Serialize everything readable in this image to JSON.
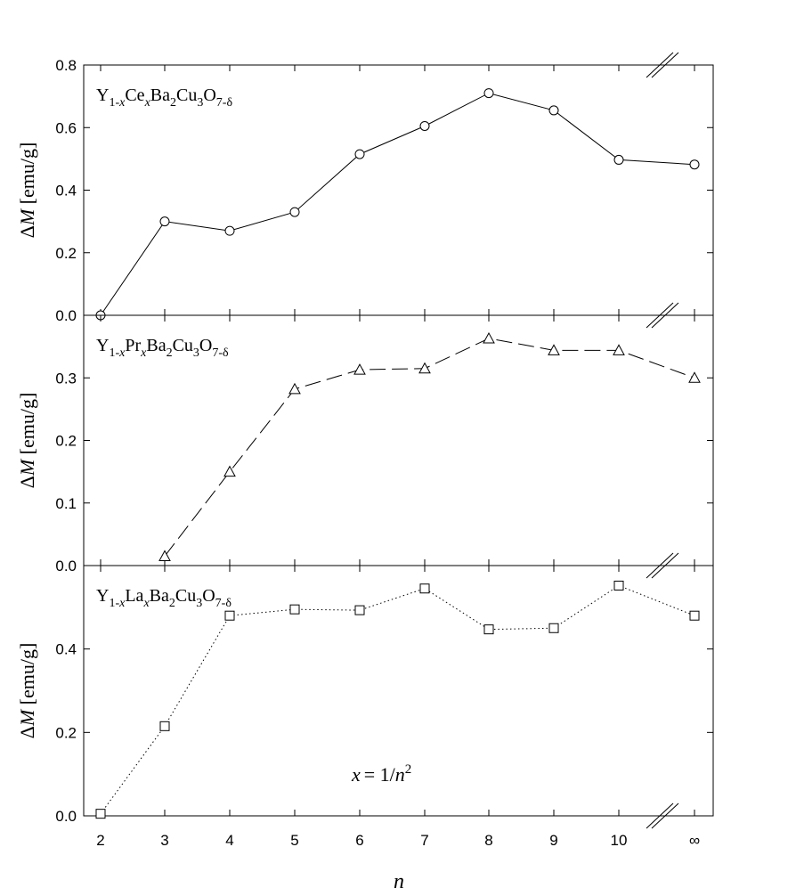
{
  "chart_data": {
    "type": "line",
    "x_categories": [
      "2",
      "3",
      "4",
      "5",
      "6",
      "7",
      "8",
      "9",
      "10",
      "∞"
    ],
    "xlabel": "n",
    "annotation": {
      "lhs": "x",
      "rhs": "= 1/",
      "var": "n",
      "exp": "2"
    },
    "panels": [
      {
        "label": {
          "y": "Y",
          "y_sub": "1-",
          "y_sub_var": "x",
          "ce": "Ce",
          "ce_sub": "x",
          "ba": "Ba",
          "ba_sub": "2",
          "cu": "Cu",
          "cu_sub": "3",
          "o": "O",
          "o_sub": "7-δ"
        },
        "ylabel": {
          "delta": "Δ",
          "var": "M",
          "unit": " [emu/g]"
        },
        "ylim": [
          0,
          0.8
        ],
        "yticks": [
          "0.0",
          "0.2",
          "0.4",
          "0.6",
          "0.8"
        ],
        "ytick_values": [
          0,
          0.2,
          0.4,
          0.6,
          0.8
        ],
        "marker": "circle",
        "line_style": "solid",
        "values": [
          0.0,
          0.3,
          0.27,
          0.33,
          0.515,
          0.605,
          0.71,
          0.655,
          0.497,
          0.482
        ]
      },
      {
        "label": {
          "y": "Y",
          "y_sub": "1-",
          "y_sub_var": "x",
          "ce": "Pr",
          "ce_sub": "x",
          "ba": "Ba",
          "ba_sub": "2",
          "cu": "Cu",
          "cu_sub": "3",
          "o": "O",
          "o_sub": "7-δ"
        },
        "ylabel": {
          "delta": "Δ",
          "var": "M",
          "unit": " [emu/g]"
        },
        "ylim": [
          0,
          0.4
        ],
        "yticks": [
          "0.0",
          "0.1",
          "0.2",
          "0.3"
        ],
        "ytick_values": [
          0,
          0.1,
          0.2,
          0.3
        ],
        "marker": "triangle",
        "line_style": "dashed",
        "values": [
          null,
          0.015,
          0.15,
          0.282,
          0.313,
          0.315,
          0.363,
          0.344,
          0.344,
          0.3
        ]
      },
      {
        "label": {
          "y": "Y",
          "y_sub": "1-",
          "y_sub_var": "x",
          "ce": "La",
          "ce_sub": "x",
          "ba": "Ba",
          "ba_sub": "2",
          "cu": "Cu",
          "cu_sub": "3",
          "o": "O",
          "o_sub": "7-δ"
        },
        "ylabel": {
          "delta": "Δ",
          "var": "M",
          "unit": " [emu/g]"
        },
        "ylim": [
          0,
          0.6
        ],
        "yticks": [
          "0.0",
          "0.2",
          "0.4"
        ],
        "ytick_values": [
          0,
          0.2,
          0.4
        ],
        "marker": "square",
        "line_style": "dotted",
        "values": [
          0.005,
          0.215,
          0.48,
          0.495,
          0.493,
          0.545,
          0.447,
          0.45,
          0.552,
          0.48
        ]
      }
    ]
  }
}
